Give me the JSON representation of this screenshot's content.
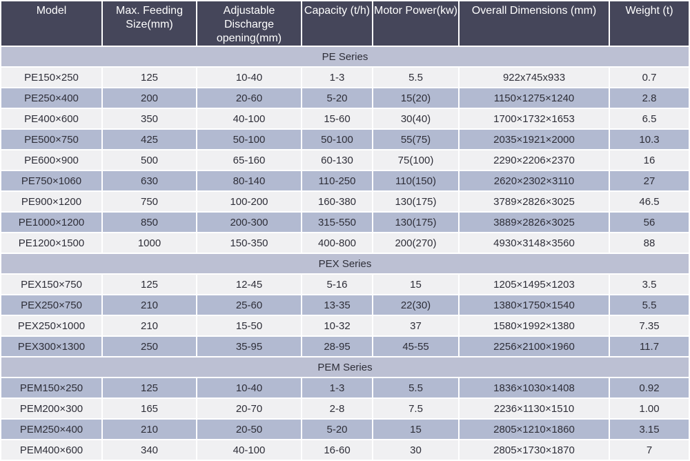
{
  "colors": {
    "header_bg": "#45465a",
    "header_text": "#ffffff",
    "section_bg": "#bcc0d3",
    "row_light": "#f0f0f2",
    "row_shaded": "#b2bad1",
    "body_text": "#2e2e38",
    "grid": "#ffffff"
  },
  "chart_data": {
    "type": "table",
    "columns": [
      "Model",
      "Max. Feeding Size(mm)",
      "Adjustable Discharge opening(mm)",
      "Capacity (t/h)",
      "Motor Power(kw)",
      "Overall Dimensions (mm)",
      "Weight (t)"
    ],
    "sections": [
      {
        "title": "PE Series",
        "first_row_shaded": false,
        "rows": [
          [
            "PE150×250",
            "125",
            "10-40",
            "1-3",
            "5.5",
            "922x745x933",
            "0.7"
          ],
          [
            "PE250×400",
            "200",
            "20-60",
            "5-20",
            "15(20)",
            "1150×1275×1240",
            "2.8"
          ],
          [
            "PE400×600",
            "350",
            "40-100",
            "15-60",
            "30(40)",
            "1700×1732×1653",
            "6.5"
          ],
          [
            "PE500×750",
            "425",
            "50-100",
            "50-100",
            "55(75)",
            "2035×1921×2000",
            "10.3"
          ],
          [
            "PE600×900",
            "500",
            "65-160",
            "60-130",
            "75(100)",
            "2290×2206×2370",
            "16"
          ],
          [
            "PE750×1060",
            "630",
            "80-140",
            "110-250",
            "110(150)",
            "2620×2302×3110",
            "27"
          ],
          [
            "PE900×1200",
            "750",
            "100-200",
            "160-380",
            "130(175)",
            "3789×2826×3025",
            "46.5"
          ],
          [
            "PE1000×1200",
            "850",
            "200-300",
            "315-550",
            "130(175)",
            "3889×2826×3025",
            "56"
          ],
          [
            "PE1200×1500",
            "1000",
            "150-350",
            "400-800",
            "200(270)",
            "4930×3148×3560",
            "88"
          ]
        ]
      },
      {
        "title": "PEX Series",
        "first_row_shaded": false,
        "rows": [
          [
            "PEX150×750",
            "125",
            "12-45",
            "5-16",
            "15",
            "1205×1495×1203",
            "3.5"
          ],
          [
            "PEX250×750",
            "210",
            "25-60",
            "13-35",
            "22(30)",
            "1380×1750×1540",
            "5.5"
          ],
          [
            "PEX250×1000",
            "210",
            "15-50",
            "10-32",
            "37",
            "1580×1992×1380",
            "7.35"
          ],
          [
            "PEX300×1300",
            "250",
            "35-95",
            "28-95",
            "45-55",
            "2256×2100×1960",
            "11.7"
          ]
        ]
      },
      {
        "title": "PEM Series",
        "first_row_shaded": true,
        "rows": [
          [
            "PEM150×250",
            "125",
            "10-40",
            "1-3",
            "5.5",
            "1836×1030×1408",
            "0.92"
          ],
          [
            "PEM200×300",
            "165",
            "20-70",
            "2-8",
            "7.5",
            "2236×1130×1510",
            "1.00"
          ],
          [
            "PEM250×400",
            "210",
            "20-50",
            "5-20",
            "15",
            "2805×1210×1860",
            "3.15"
          ],
          [
            "PEM400×600",
            "340",
            "40-100",
            "16-60",
            "30",
            "2805×1730×1870",
            "7"
          ]
        ]
      }
    ]
  }
}
